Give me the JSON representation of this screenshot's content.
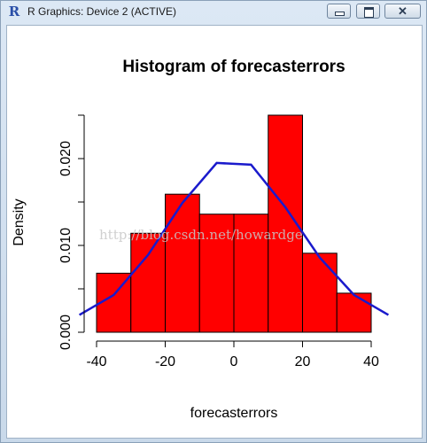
{
  "window": {
    "title": "R Graphics: Device 2 (ACTIVE)",
    "app_icon": "R"
  },
  "watermark": "http://blog.csdn.net/howardge",
  "colors": {
    "bars": "#ff0000",
    "curve": "#1a1acc",
    "axis": "#000000"
  },
  "chart_data": {
    "type": "bar",
    "title": "Histogram of forecasterrors",
    "xlabel": "forecasterrors",
    "ylabel": "Density",
    "bins": [
      {
        "from": -40,
        "to": -30,
        "density": 0.0068
      },
      {
        "from": -30,
        "to": -20,
        "density": 0.0114
      },
      {
        "from": -20,
        "to": -10,
        "density": 0.0159
      },
      {
        "from": -10,
        "to": 0,
        "density": 0.0136
      },
      {
        "from": 0,
        "to": 10,
        "density": 0.0136
      },
      {
        "from": 10,
        "to": 20,
        "density": 0.025
      },
      {
        "from": 20,
        "to": 30,
        "density": 0.0091
      },
      {
        "from": 30,
        "to": 40,
        "density": 0.0045
      }
    ],
    "x_ticks": [
      "-40",
      "-20",
      "0",
      "20",
      "40"
    ],
    "x_tick_values": [
      -40,
      -20,
      0,
      20,
      40
    ],
    "y_ticks": [
      "0.000",
      "0.010",
      "0.020"
    ],
    "y_tick_values": [
      0,
      0.01,
      0.02
    ],
    "xlim": [
      -42,
      42
    ],
    "ylim": [
      0,
      0.025
    ],
    "series": [
      {
        "type": "line",
        "points": [
          {
            "x": -45,
            "y": 0.002
          },
          {
            "x": -35,
            "y": 0.0043
          },
          {
            "x": -25,
            "y": 0.0089
          },
          {
            "x": -15,
            "y": 0.0149
          },
          {
            "x": -5,
            "y": 0.0195
          },
          {
            "x": 5,
            "y": 0.0193
          },
          {
            "x": 15,
            "y": 0.0144
          },
          {
            "x": 25,
            "y": 0.0086
          },
          {
            "x": 35,
            "y": 0.0043
          },
          {
            "x": 45,
            "y": 0.002
          }
        ]
      }
    ]
  }
}
